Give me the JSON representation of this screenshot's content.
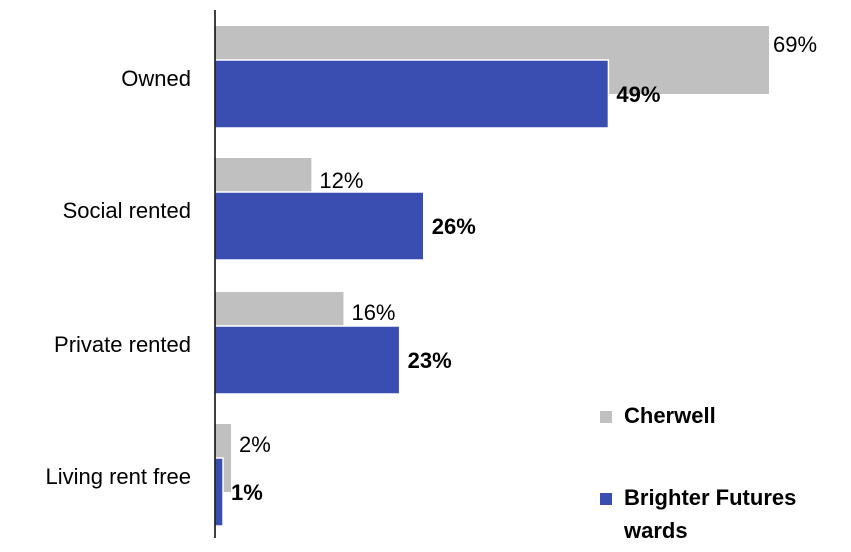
{
  "chart_data": {
    "type": "bar",
    "orientation": "horizontal",
    "categories": [
      "Owned",
      "Social rented",
      "Private rented",
      "Living rent free"
    ],
    "series": [
      {
        "name": "Cherwell",
        "values": [
          69,
          12,
          16,
          2
        ],
        "labels": [
          "69%",
          "12%",
          "16%",
          "2%"
        ],
        "color": "#c0c0c0"
      },
      {
        "name": "Brighter Futures wards",
        "values": [
          49,
          26,
          23,
          1
        ],
        "labels": [
          "49%",
          "26%",
          "23%",
          "1%"
        ],
        "color": "#3a4db1"
      }
    ],
    "xlim": [
      0,
      69
    ],
    "grid": false,
    "legend_position": "bottom-right",
    "legend": [
      {
        "lines": [
          "Cherwell"
        ],
        "color": "#c0c0c0"
      },
      {
        "lines": [
          "Brighter Futures",
          "wards"
        ],
        "color": "#3a4db1"
      }
    ]
  }
}
